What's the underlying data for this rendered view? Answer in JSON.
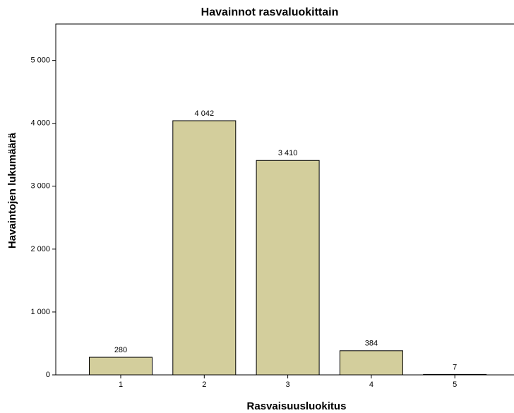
{
  "chart_data": {
    "type": "bar",
    "title": "Havainnot rasvaluokittain",
    "x_label": "Rasvaisuusluokitus",
    "y_label": "Havaintojen lukumäärä",
    "categories": [
      "1",
      "2",
      "3",
      "4",
      "5"
    ],
    "values": [
      280,
      4042,
      3410,
      384,
      7
    ],
    "value_labels": [
      "280",
      "4 042",
      "3 410",
      "384",
      "7"
    ],
    "color": "#d3ce9c",
    "ylim": [
      0,
      5580
    ],
    "yticks": [
      0,
      {
        "value": 1000,
        "label": "1 000"
      },
      {
        "value": 2000,
        "label": "2 000"
      },
      {
        "value": 3000,
        "label": "3 000"
      },
      {
        "value": 4000,
        "label": "4 000"
      },
      {
        "value": 5000,
        "label": "5 000"
      }
    ],
    "grid": false
  }
}
